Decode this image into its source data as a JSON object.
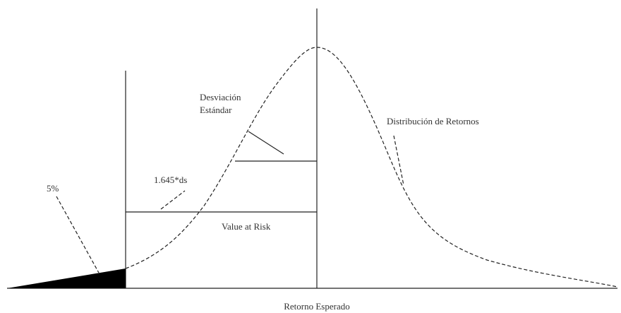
{
  "annotations": {
    "std_dev": [
      "Desviación",
      "Estándar"
    ],
    "distribution": "Distribución de Retornos",
    "multiplier": "1.645*ds",
    "tail": "5%",
    "var": "Value at Risk",
    "x_label": "Retorno Esperado"
  }
}
